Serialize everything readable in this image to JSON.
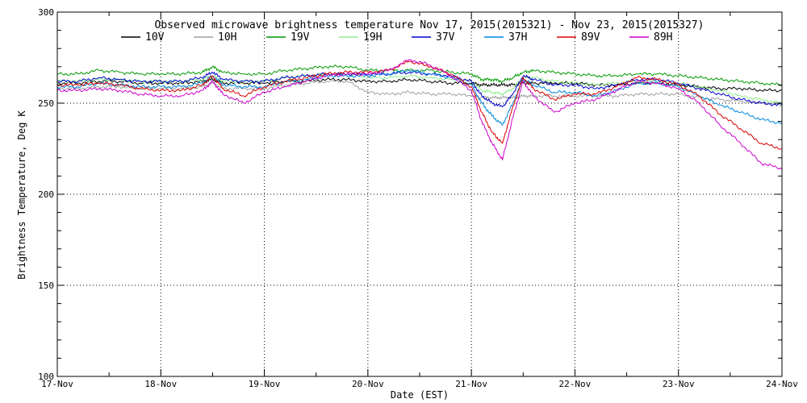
{
  "chart_data": {
    "type": "line",
    "title": "Observed microwave brightness temperature Nov 17, 2015(2015321) - Nov 23, 2015(2015327)",
    "xlabel": "Date (EST)",
    "ylabel": "Brightness Temperature, Deg K",
    "xlim": [
      0,
      7
    ],
    "ylim": [
      100,
      300
    ],
    "x_ticks": [
      {
        "value": 0,
        "label": "17-Nov"
      },
      {
        "value": 1,
        "label": "18-Nov"
      },
      {
        "value": 2,
        "label": "19-Nov"
      },
      {
        "value": 3,
        "label": "20-Nov"
      },
      {
        "value": 4,
        "label": "21-Nov"
      },
      {
        "value": 5,
        "label": "22-Nov"
      },
      {
        "value": 6,
        "label": "23-Nov"
      },
      {
        "value": 7,
        "label": "24-Nov"
      }
    ],
    "y_ticks": [
      100,
      150,
      200,
      250,
      300
    ],
    "grid": true,
    "legend_placement": "top",
    "series": [
      {
        "name": "10V",
        "color": "#000000",
        "x": [
          0,
          0.2,
          0.4,
          0.6,
          0.8,
          1.0,
          1.2,
          1.4,
          1.5,
          1.6,
          1.8,
          2.0,
          2.2,
          2.4,
          2.6,
          2.8,
          3.0,
          3.2,
          3.4,
          3.6,
          3.8,
          4.0,
          4.1,
          4.2,
          4.3,
          4.4,
          4.5,
          4.6,
          4.8,
          5.0,
          5.2,
          5.4,
          5.6,
          5.8,
          6.0,
          6.2,
          6.4,
          6.6,
          6.8,
          7.0
        ],
        "y": [
          261,
          261,
          262,
          262,
          261,
          261,
          261,
          262,
          263,
          261,
          261,
          261,
          262,
          262,
          263,
          263,
          262,
          262,
          263,
          262,
          261,
          261,
          260,
          260,
          260,
          260,
          261,
          261,
          261,
          261,
          260,
          260,
          261,
          261,
          260,
          259,
          258,
          258,
          257,
          257
        ]
      },
      {
        "name": "10H",
        "color": "#a0a0a0",
        "x": [
          0,
          0.2,
          0.4,
          0.6,
          0.8,
          1.0,
          1.2,
          1.4,
          1.5,
          1.6,
          1.8,
          2.0,
          2.2,
          2.4,
          2.6,
          2.8,
          3.0,
          3.2,
          3.4,
          3.6,
          3.8,
          4.0,
          4.1,
          4.2,
          4.3,
          4.4,
          4.5,
          4.6,
          4.8,
          5.0,
          5.2,
          5.4,
          5.6,
          5.8,
          6.0,
          6.2,
          6.4,
          6.6,
          6.8,
          7.0
        ],
        "y": [
          258,
          258,
          259,
          259,
          258,
          258,
          258,
          259,
          261,
          258,
          258,
          258,
          260,
          261,
          262,
          262,
          256,
          255,
          256,
          255,
          255,
          254,
          253,
          253,
          253,
          253,
          254,
          254,
          254,
          254,
          254,
          254,
          255,
          255,
          255,
          253,
          252,
          251,
          250,
          249
        ]
      },
      {
        "name": "19V",
        "color": "#009900",
        "x": [
          0,
          0.2,
          0.4,
          0.6,
          0.8,
          1.0,
          1.2,
          1.4,
          1.5,
          1.6,
          1.8,
          2.0,
          2.2,
          2.4,
          2.6,
          2.8,
          3.0,
          3.2,
          3.4,
          3.6,
          3.8,
          4.0,
          4.1,
          4.2,
          4.3,
          4.4,
          4.5,
          4.6,
          4.8,
          5.0,
          5.2,
          5.4,
          5.6,
          5.8,
          6.0,
          6.2,
          6.4,
          6.6,
          6.8,
          7.0
        ],
        "y": [
          266,
          266,
          268,
          267,
          266,
          266,
          266,
          267,
          270,
          267,
          266,
          266,
          268,
          269,
          270,
          270,
          268,
          268,
          268,
          268,
          267,
          266,
          263,
          263,
          262,
          264,
          267,
          268,
          267,
          266,
          265,
          265,
          266,
          266,
          265,
          264,
          263,
          262,
          261,
          260
        ]
      },
      {
        "name": "19H",
        "color": "#90ee90",
        "x": [
          0,
          0.2,
          0.4,
          0.6,
          0.8,
          1.0,
          1.2,
          1.4,
          1.5,
          1.6,
          1.8,
          2.0,
          2.2,
          2.4,
          2.6,
          2.8,
          3.0,
          3.2,
          3.4,
          3.6,
          3.8,
          4.0,
          4.1,
          4.2,
          4.3,
          4.4,
          4.5,
          4.6,
          4.8,
          5.0,
          5.2,
          5.4,
          5.6,
          5.8,
          6.0,
          6.2,
          6.4,
          6.6,
          6.8,
          7.0
        ],
        "y": [
          262,
          262,
          263,
          263,
          262,
          262,
          262,
          263,
          265,
          262,
          262,
          262,
          264,
          265,
          266,
          266,
          264,
          264,
          265,
          264,
          263,
          262,
          257,
          256,
          255,
          258,
          264,
          264,
          262,
          261,
          260,
          261,
          262,
          262,
          261,
          259,
          257,
          254,
          252,
          250
        ]
      },
      {
        "name": "37V",
        "color": "#0000cc",
        "x": [
          0,
          0.2,
          0.4,
          0.6,
          0.8,
          1.0,
          1.2,
          1.4,
          1.5,
          1.6,
          1.8,
          2.0,
          2.2,
          2.4,
          2.6,
          2.8,
          3.0,
          3.2,
          3.4,
          3.6,
          3.8,
          4.0,
          4.1,
          4.2,
          4.3,
          4.4,
          4.5,
          4.6,
          4.8,
          5.0,
          5.2,
          5.4,
          5.6,
          5.8,
          6.0,
          6.2,
          6.4,
          6.6,
          6.8,
          7.0
        ],
        "y": [
          262,
          262,
          264,
          263,
          262,
          262,
          262,
          264,
          267,
          263,
          262,
          262,
          264,
          265,
          266,
          266,
          266,
          266,
          267,
          266,
          265,
          262,
          254,
          250,
          248,
          255,
          265,
          263,
          260,
          260,
          258,
          260,
          263,
          263,
          261,
          258,
          255,
          252,
          250,
          249
        ]
      },
      {
        "name": "37H",
        "color": "#0088dd",
        "x": [
          0,
          0.2,
          0.4,
          0.6,
          0.8,
          1.0,
          1.2,
          1.4,
          1.5,
          1.6,
          1.8,
          2.0,
          2.2,
          2.4,
          2.6,
          2.8,
          3.0,
          3.2,
          3.4,
          3.6,
          3.8,
          4.0,
          4.1,
          4.2,
          4.3,
          4.4,
          4.5,
          4.6,
          4.8,
          5.0,
          5.2,
          5.4,
          5.6,
          5.8,
          6.0,
          6.2,
          6.4,
          6.6,
          6.8,
          7.0
        ],
        "y": [
          259,
          259,
          261,
          260,
          259,
          259,
          259,
          261,
          265,
          260,
          259,
          259,
          262,
          263,
          265,
          265,
          265,
          266,
          268,
          266,
          264,
          260,
          250,
          243,
          238,
          250,
          263,
          260,
          256,
          256,
          254,
          257,
          261,
          261,
          259,
          254,
          249,
          245,
          241,
          239
        ]
      },
      {
        "name": "89V",
        "color": "#dd0000",
        "x": [
          0,
          0.2,
          0.4,
          0.6,
          0.8,
          1.0,
          1.2,
          1.4,
          1.5,
          1.6,
          1.8,
          2.0,
          2.2,
          2.4,
          2.6,
          2.8,
          3.0,
          3.2,
          3.4,
          3.6,
          3.8,
          4.0,
          4.1,
          4.2,
          4.3,
          4.4,
          4.5,
          4.6,
          4.8,
          5.0,
          5.2,
          5.4,
          5.6,
          5.8,
          6.0,
          6.2,
          6.4,
          6.6,
          6.8,
          7.0
        ],
        "y": [
          260,
          260,
          261,
          260,
          258,
          257,
          257,
          260,
          265,
          258,
          254,
          259,
          262,
          264,
          266,
          267,
          267,
          268,
          273,
          270,
          266,
          259,
          245,
          234,
          228,
          248,
          264,
          258,
          252,
          255,
          255,
          259,
          264,
          263,
          260,
          254,
          244,
          236,
          228,
          225
        ]
      },
      {
        "name": "89H",
        "color": "#cc00cc",
        "x": [
          0,
          0.2,
          0.4,
          0.6,
          0.8,
          1.0,
          1.2,
          1.4,
          1.5,
          1.6,
          1.8,
          2.0,
          2.2,
          2.4,
          2.6,
          2.8,
          3.0,
          3.2,
          3.4,
          3.6,
          3.8,
          4.0,
          4.1,
          4.2,
          4.3,
          4.4,
          4.5,
          4.6,
          4.8,
          5.0,
          5.2,
          5.4,
          5.6,
          5.8,
          6.0,
          6.2,
          6.4,
          6.6,
          6.8,
          7.0
        ],
        "y": [
          257,
          257,
          258,
          257,
          255,
          254,
          254,
          257,
          262,
          255,
          250,
          256,
          259,
          262,
          265,
          266,
          266,
          268,
          274,
          271,
          265,
          257,
          240,
          228,
          219,
          242,
          262,
          254,
          245,
          250,
          252,
          257,
          262,
          261,
          258,
          250,
          238,
          228,
          217,
          214
        ]
      }
    ]
  }
}
